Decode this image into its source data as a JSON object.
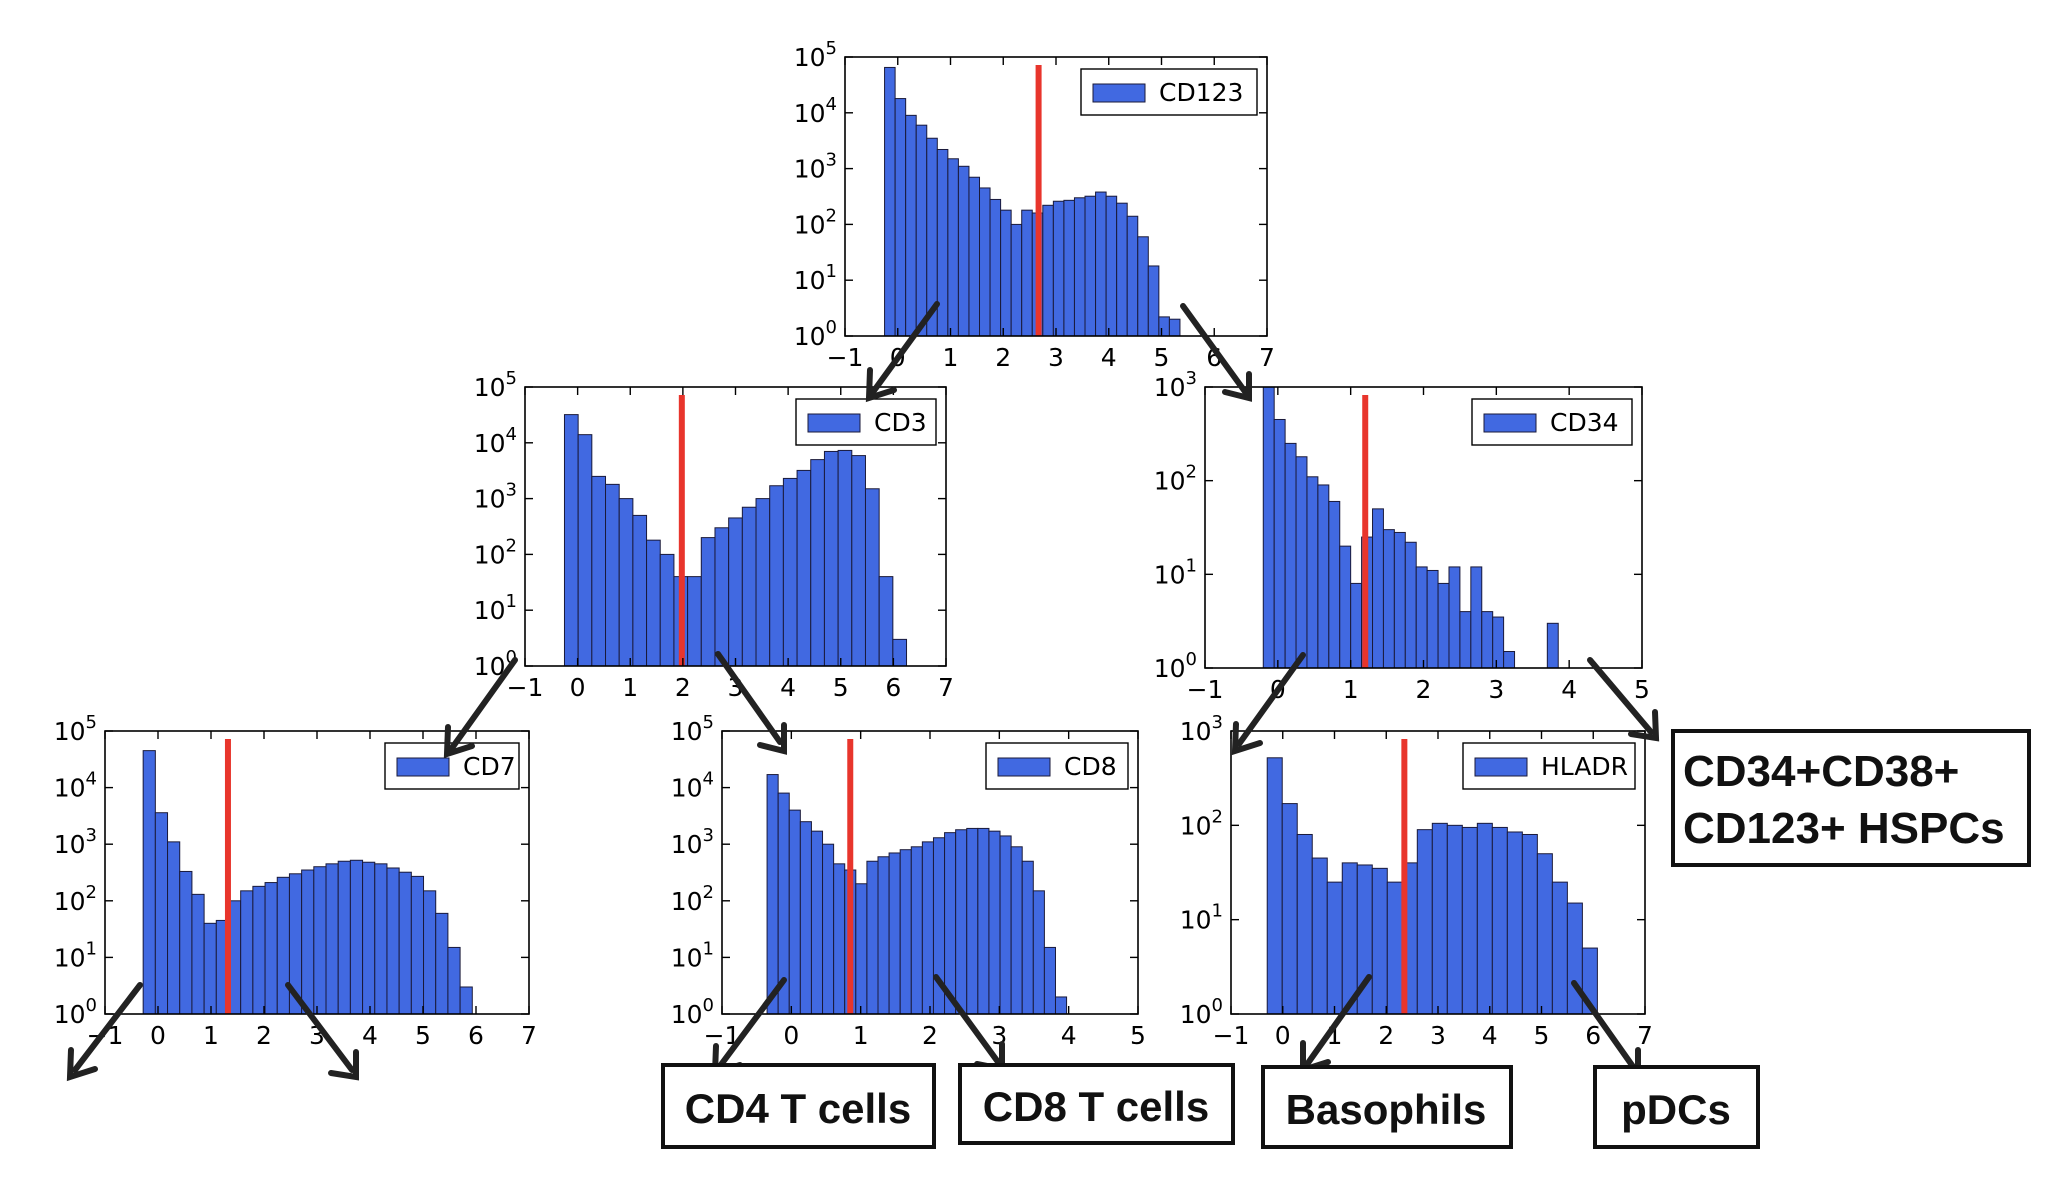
{
  "colors": {
    "bar": "#4169e1",
    "bar_edge": "#1a1a3a",
    "threshold": "#e8352c",
    "arrow": "#222222",
    "box": "#111111"
  },
  "chart_data": [
    {
      "id": "cd123",
      "type": "bar",
      "legend": "CD123",
      "yscale": "log",
      "xlim": [
        -1,
        7
      ],
      "ylim": [
        1,
        100000
      ],
      "xticks": [
        -1,
        0,
        1,
        2,
        3,
        4,
        5,
        6,
        7
      ],
      "xtick_labels": [
        "−1",
        "0",
        "1",
        "2",
        "3",
        "4",
        "5",
        "6",
        "7"
      ],
      "yticks": [
        1,
        10,
        100,
        1000,
        10000,
        100000
      ],
      "ytick_labels": [
        "10^0",
        "10^1",
        "10^2",
        "10^3",
        "10^4",
        "10^5"
      ],
      "threshold": 2.67,
      "bins_start": -0.25,
      "bin_width": 0.2,
      "values": [
        65000,
        18000,
        9000,
        6000,
        3500,
        2200,
        1500,
        1100,
        700,
        450,
        280,
        180,
        100,
        180,
        160,
        220,
        260,
        270,
        300,
        320,
        380,
        320,
        240,
        140,
        60,
        18,
        2.2,
        2
      ]
    },
    {
      "id": "cd3",
      "type": "bar",
      "legend": "CD3",
      "yscale": "log",
      "xlim": [
        -1,
        7
      ],
      "ylim": [
        1,
        100000
      ],
      "xticks": [
        -1,
        0,
        1,
        2,
        3,
        4,
        5,
        6,
        7
      ],
      "xtick_labels": [
        "−1",
        "0",
        "1",
        "2",
        "3",
        "4",
        "5",
        "6",
        "7"
      ],
      "yticks": [
        1,
        10,
        100,
        1000,
        10000,
        100000
      ],
      "ytick_labels": [
        "10^0",
        "10^1",
        "10^2",
        "10^3",
        "10^4",
        "10^5"
      ],
      "threshold": 1.98,
      "bins_start": -0.25,
      "bin_width": 0.26,
      "values": [
        32000,
        14000,
        2500,
        1800,
        1000,
        500,
        180,
        100,
        40,
        40,
        200,
        300,
        450,
        700,
        1000,
        1700,
        2300,
        3200,
        5000,
        7000,
        7300,
        5900,
        1500,
        40,
        3
      ]
    },
    {
      "id": "cd34",
      "type": "bar",
      "legend": "CD34",
      "yscale": "log",
      "xlim": [
        -1,
        5
      ],
      "ylim": [
        1,
        1000
      ],
      "xticks": [
        -1,
        0,
        1,
        2,
        3,
        4,
        5
      ],
      "xtick_labels": [
        "−1",
        "0",
        "1",
        "2",
        "3",
        "4",
        "5"
      ],
      "yticks": [
        1,
        10,
        100,
        1000
      ],
      "ytick_labels": [
        "10^0",
        "10^1",
        "10^2",
        "10^3"
      ],
      "threshold": 1.2,
      "bins_start": -0.2,
      "bin_width": 0.15,
      "values": [
        1000,
        450,
        250,
        180,
        110,
        90,
        60,
        20,
        8,
        25,
        50,
        30,
        28,
        22,
        12,
        11,
        8,
        12,
        4,
        12,
        4,
        3.5,
        1.5,
        0,
        0,
        1,
        3
      ]
    },
    {
      "id": "cd7",
      "type": "bar",
      "legend": "CD7",
      "yscale": "log",
      "xlim": [
        -1,
        7
      ],
      "ylim": [
        1,
        100000
      ],
      "xticks": [
        -1,
        0,
        1,
        2,
        3,
        4,
        5,
        6,
        7
      ],
      "xtick_labels": [
        "−1",
        "0",
        "1",
        "2",
        "3",
        "4",
        "5",
        "6",
        "7"
      ],
      "yticks": [
        1,
        10,
        100,
        1000,
        10000,
        100000
      ],
      "ytick_labels": [
        "10^0",
        "10^1",
        "10^2",
        "10^3",
        "10^4",
        "10^5"
      ],
      "threshold": 1.32,
      "bins_start": -0.28,
      "bin_width": 0.23,
      "values": [
        45000,
        3600,
        1100,
        330,
        130,
        40,
        45,
        100,
        150,
        180,
        210,
        260,
        300,
        350,
        400,
        450,
        500,
        520,
        480,
        450,
        380,
        320,
        270,
        150,
        60,
        15,
        3
      ]
    },
    {
      "id": "cd8",
      "type": "bar",
      "legend": "CD8",
      "yscale": "log",
      "xlim": [
        -1,
        5
      ],
      "ylim": [
        1,
        100000
      ],
      "xticks": [
        -1,
        0,
        1,
        2,
        3,
        4,
        5
      ],
      "xtick_labels": [
        "−1",
        "0",
        "1",
        "2",
        "3",
        "4",
        "5"
      ],
      "yticks": [
        1,
        10,
        100,
        1000,
        10000,
        100000
      ],
      "ytick_labels": [
        "10^0",
        "10^1",
        "10^2",
        "10^3",
        "10^4",
        "10^5"
      ],
      "threshold": 0.85,
      "bins_start": -0.35,
      "bin_width": 0.16,
      "values": [
        17000,
        8000,
        4000,
        2500,
        1700,
        1000,
        450,
        350,
        200,
        500,
        600,
        700,
        800,
        900,
        1100,
        1300,
        1600,
        1800,
        1900,
        1900,
        1700,
        1400,
        900,
        500,
        150,
        15,
        2
      ]
    },
    {
      "id": "hladr",
      "type": "bar",
      "legend": "HLADR",
      "yscale": "log",
      "xlim": [
        -1,
        7
      ],
      "ylim": [
        1,
        1000
      ],
      "xticks": [
        -1,
        0,
        1,
        2,
        3,
        4,
        5,
        6,
        7
      ],
      "xtick_labels": [
        "−1",
        "0",
        "1",
        "2",
        "3",
        "4",
        "5",
        "6",
        "7"
      ],
      "yticks": [
        1,
        10,
        100,
        1000
      ],
      "ytick_labels": [
        "10^0",
        "10^1",
        "10^2",
        "10^3"
      ],
      "threshold": 2.35,
      "bins_start": -0.3,
      "bin_width": 0.29,
      "values": [
        520,
        170,
        80,
        45,
        25,
        40,
        38,
        35,
        25,
        40,
        90,
        105,
        100,
        95,
        105,
        95,
        85,
        80,
        50,
        25,
        15,
        5
      ]
    }
  ],
  "labels": {
    "cd4": "CD4 T cells",
    "cd8t": "CD8 T cells",
    "baso": "Basophils",
    "pdc": "pDCs",
    "hspc_line1": "CD34+CD38+",
    "hspc_line2": "CD123+ HSPCs"
  }
}
